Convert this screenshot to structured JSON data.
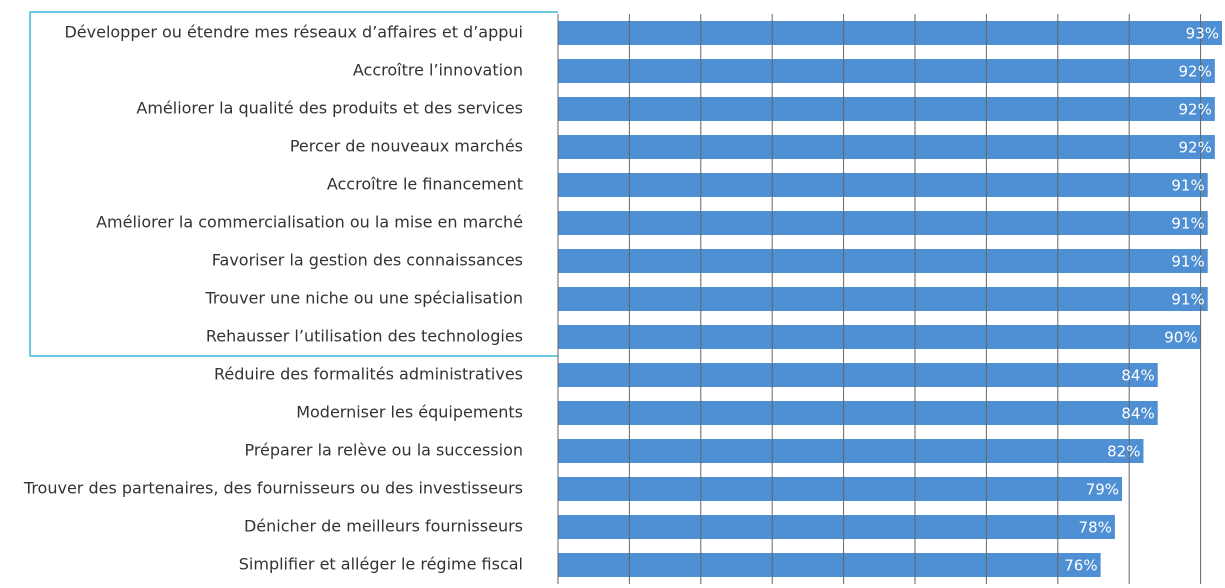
{
  "chart_data": {
    "type": "bar",
    "orientation": "horizontal",
    "categories": [
      "Développer ou étendre mes réseaux d’affaires et d’appui",
      "Accroître l’innovation",
      "Améliorer la qualité des produits et des services",
      "Percer de nouveaux marchés",
      "Accroître le financement",
      "Améliorer la commercialisation ou la mise en marché",
      "Favoriser la gestion des connaissances",
      "Trouver une niche ou une spécialisation",
      "Rehausser l’utilisation des technologies",
      "Réduire des formalités administratives",
      "Moderniser les équipements",
      "Préparer la relève ou la succession",
      "Trouver des partenaires, des fournisseurs ou des investisseurs",
      "Dénicher de meilleurs fournisseurs",
      "Simplifier et alléger le régime fiscal"
    ],
    "values": [
      93,
      92,
      92,
      92,
      91,
      91,
      91,
      91,
      90,
      84,
      84,
      82,
      79,
      78,
      76
    ],
    "value_labels": [
      "93%",
      "92%",
      "92%",
      "92%",
      "91%",
      "91%",
      "91%",
      "91%",
      "90%",
      "84%",
      "84%",
      "82%",
      "79%",
      "78%",
      "76%"
    ],
    "color": "#4f8fd3",
    "xlim": [
      0,
      93
    ],
    "xticks": [
      0,
      10,
      20,
      30,
      40,
      50,
      60,
      70,
      80,
      90
    ],
    "grid": true
  }
}
